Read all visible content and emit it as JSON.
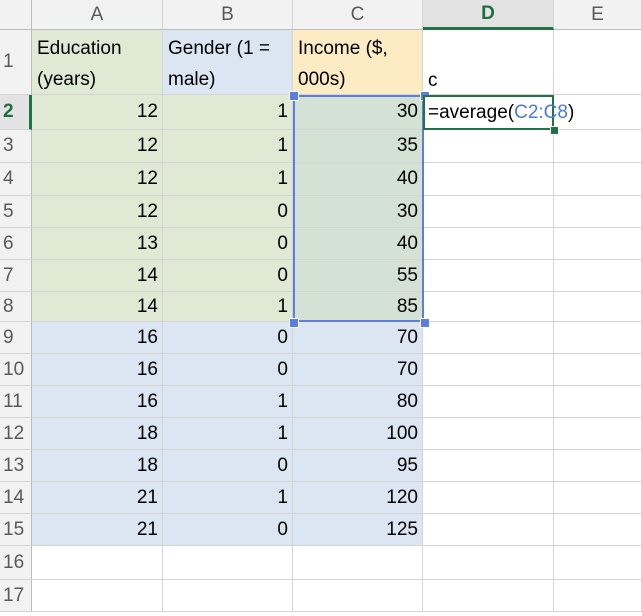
{
  "columns": [
    "A",
    "B",
    "C",
    "D",
    "E"
  ],
  "active_column": "D",
  "rows": [
    "1",
    "2",
    "3",
    "4",
    "5",
    "6",
    "7",
    "8",
    "9",
    "10",
    "11",
    "12",
    "13",
    "14",
    "15",
    "16",
    "17"
  ],
  "active_row": "2",
  "headers": {
    "a1": "Education (years)",
    "b1": "Gender (1 = male)",
    "c1": "Income ($, 000s)",
    "d1": "c"
  },
  "data": [
    {
      "edu": "12",
      "gender": "1",
      "income": "30"
    },
    {
      "edu": "12",
      "gender": "1",
      "income": "35"
    },
    {
      "edu": "12",
      "gender": "1",
      "income": "40"
    },
    {
      "edu": "12",
      "gender": "0",
      "income": "30"
    },
    {
      "edu": "13",
      "gender": "0",
      "income": "40"
    },
    {
      "edu": "14",
      "gender": "0",
      "income": "55"
    },
    {
      "edu": "14",
      "gender": "1",
      "income": "85"
    },
    {
      "edu": "16",
      "gender": "0",
      "income": "70"
    },
    {
      "edu": "16",
      "gender": "0",
      "income": "70"
    },
    {
      "edu": "16",
      "gender": "1",
      "income": "80"
    },
    {
      "edu": "18",
      "gender": "1",
      "income": "100"
    },
    {
      "edu": "18",
      "gender": "0",
      "income": "95"
    },
    {
      "edu": "21",
      "gender": "1",
      "income": "120"
    },
    {
      "edu": "21",
      "gender": "0",
      "income": "125"
    }
  ],
  "formula": {
    "prefix": "=average(",
    "range": "C2:C8",
    "suffix": ")"
  },
  "colors": {
    "green_fill": "#dfe9d3",
    "blue_fill": "#dce6f3",
    "yellow_fill": "#fdecc3",
    "range_highlight": "#5b7ee0",
    "active_green": "#217346"
  }
}
